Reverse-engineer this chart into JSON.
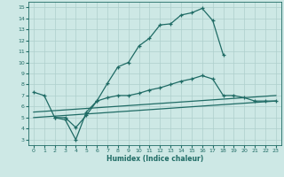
{
  "bg_color": "#cde8e5",
  "grid_color": "#aecfcc",
  "line_color": "#1f6b65",
  "xlabel": "Humidex (Indice chaleur)",
  "xlim": [
    -0.5,
    23.5
  ],
  "ylim": [
    2.5,
    15.5
  ],
  "xticks": [
    0,
    1,
    2,
    3,
    4,
    5,
    6,
    7,
    8,
    9,
    10,
    11,
    12,
    13,
    14,
    15,
    16,
    17,
    18,
    19,
    20,
    21,
    22,
    23
  ],
  "yticks": [
    3,
    4,
    5,
    6,
    7,
    8,
    9,
    10,
    11,
    12,
    13,
    14,
    15
  ],
  "line1_x": [
    0,
    1,
    2,
    3,
    4,
    5,
    6,
    7,
    8,
    9,
    10,
    11,
    12,
    13,
    14,
    15,
    16,
    17,
    18
  ],
  "line1_y": [
    7.3,
    7.0,
    5.0,
    5.0,
    4.1,
    5.2,
    6.5,
    8.1,
    9.6,
    10.0,
    11.5,
    12.2,
    13.4,
    13.5,
    14.3,
    14.5,
    14.9,
    13.8,
    10.7
  ],
  "line2_x": [
    2,
    3,
    4,
    5,
    6,
    7,
    8,
    9,
    10,
    11,
    12,
    13,
    14,
    15,
    16,
    17,
    18,
    19,
    20,
    21,
    22,
    23
  ],
  "line2_y": [
    5.0,
    4.8,
    3.0,
    5.5,
    6.5,
    6.8,
    7.0,
    7.0,
    7.2,
    7.5,
    7.7,
    8.0,
    8.3,
    8.5,
    8.8,
    8.5,
    7.0,
    7.0,
    6.8,
    6.5,
    6.5,
    6.5
  ],
  "line3_x": [
    0,
    23
  ],
  "line3_y": [
    5.0,
    6.5
  ],
  "line4_x": [
    0,
    23
  ],
  "line4_y": [
    5.5,
    7.0
  ]
}
